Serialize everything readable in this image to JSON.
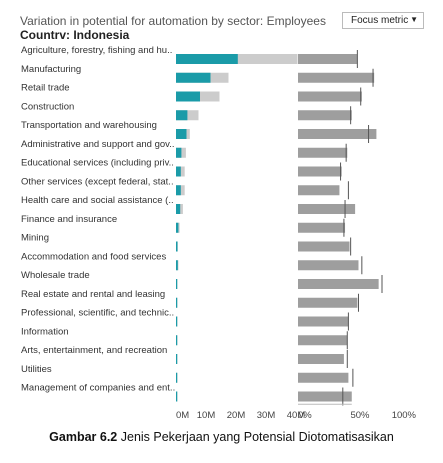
{
  "title": "Variation in potential for automation by sector: Employees",
  "country_label": "Countrv:",
  "country_value": "Indonesia",
  "dropdown": {
    "label": "Focus metric",
    "arrow": "▼"
  },
  "caption": {
    "bold": "Gambar 6.2",
    "text": " Jenis Pekerjaan yang Potensial Diotomatisasikan"
  },
  "colors": {
    "teal": "#1a9ba8",
    "light": "#cccccc",
    "bar": "#9e9e9e",
    "mark": "#555555"
  },
  "chart_data": {
    "type": "bar",
    "categories": [
      "Agriculture, forestry, fishing and hu..",
      "Manufacturing",
      "Retail trade",
      "Construction",
      "Transportation and warehousing",
      "Administrative and support and gov..",
      "Educational services (including priv..",
      "Other services (except federal, stat..",
      "Health care and social assistance (..",
      "Finance and insurance",
      "Mining",
      "Accommodation and food services",
      "Wholesale trade",
      "Real estate and rental and leasing",
      "Professional, scientific, and technic..",
      "Information",
      "Arts, entertainment, and recreation",
      "Utilities",
      "Management of companies and ent.."
    ],
    "employees_panel": {
      "xlim": [
        0,
        40
      ],
      "ticks": [
        "0M",
        "10M",
        "20M",
        "30M",
        "40M"
      ],
      "automatable_m": [
        20.6,
        11.5,
        8.0,
        3.8,
        3.5,
        1.8,
        1.6,
        1.6,
        1.4,
        0.8,
        0.5,
        0.6,
        0.3,
        0.2,
        0.2,
        0.2,
        0.2,
        0.1,
        0.1
      ],
      "total_m": [
        40.5,
        17.5,
        14.5,
        7.5,
        4.6,
        3.3,
        2.9,
        2.9,
        2.3,
        1.2,
        0.6,
        0.8,
        0.4,
        0.3,
        0.3,
        0.3,
        0.3,
        0.2,
        0.2
      ]
    },
    "percent_panel": {
      "xlim": [
        0,
        100
      ],
      "ticks": [
        "0%",
        "50%",
        "100%"
      ],
      "values": [
        53,
        68,
        57,
        48,
        70,
        44,
        39,
        37,
        51,
        42,
        46,
        54,
        72,
        53,
        45,
        44,
        41,
        45,
        48
      ],
      "markers": [
        53,
        67,
        56,
        47,
        63,
        43,
        38,
        45,
        42,
        41,
        47,
        57,
        75,
        54,
        45,
        44,
        44,
        49,
        40
      ]
    }
  }
}
